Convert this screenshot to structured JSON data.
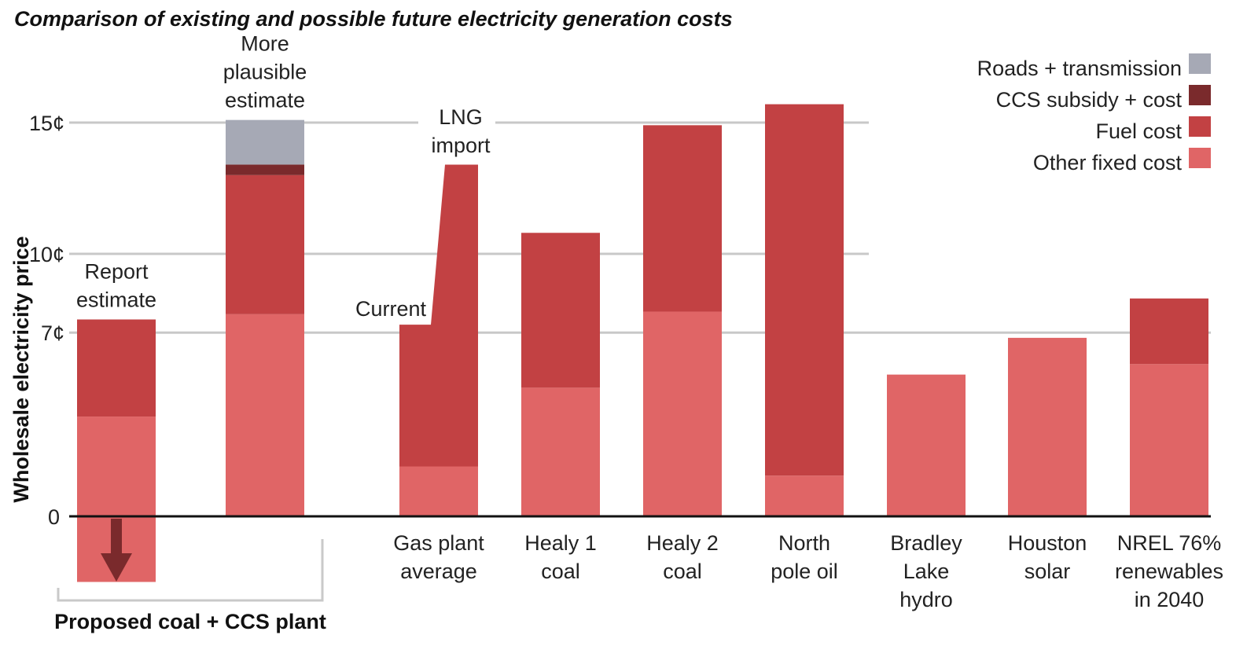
{
  "chart_data": {
    "type": "bar",
    "stacked": true,
    "title": "Comparison of existing and possible future electricity generation costs",
    "ylabel": "Wholesale electricity price",
    "ylim": [
      -2.5,
      16
    ],
    "yticks": [
      {
        "value": 0,
        "label": "0"
      },
      {
        "value": 7,
        "label": "7¢"
      },
      {
        "value": 10,
        "label": "10¢"
      },
      {
        "value": 15,
        "label": "15¢"
      }
    ],
    "gridlines": [
      7,
      10,
      15
    ],
    "legend_position": "top-right",
    "legend": [
      {
        "key": "roads",
        "label": "Roads + transmission",
        "color": "#a6a9b5"
      },
      {
        "key": "ccs",
        "label": "CCS subsidy + cost",
        "color": "#7a2a2c"
      },
      {
        "key": "fuel",
        "label": "Fuel cost",
        "color": "#c24143"
      },
      {
        "key": "fixed",
        "label": "Other fixed cost",
        "color": "#e06566"
      }
    ],
    "bars": [
      {
        "id": "report",
        "label_lines": [
          "Report",
          "estimate"
        ],
        "label_position": "above",
        "segments": {
          "fixed": 3.8,
          "fuel": 3.7,
          "ccs": 0,
          "roads": 0
        },
        "negative": -2.5
      },
      {
        "id": "plausible",
        "label_lines": [
          "More",
          "plausible",
          "estimate"
        ],
        "label_position": "above",
        "segments": {
          "fixed": 7.7,
          "fuel": 5.3,
          "ccs": 0.4,
          "roads": 1.7
        }
      },
      {
        "id": "gas",
        "label_lines": [
          "Gas plant",
          "average"
        ],
        "segments": {
          "fixed": 1.9,
          "fuel": 5.4,
          "ccs": 0,
          "roads": 0
        },
        "lng_import": 13.4,
        "annotations": [
          "Current",
          "LNG",
          "import"
        ]
      },
      {
        "id": "healy1",
        "label_lines": [
          "Healy 1",
          "coal"
        ],
        "segments": {
          "fixed": 4.9,
          "fuel": 5.9,
          "ccs": 0,
          "roads": 0
        }
      },
      {
        "id": "healy2",
        "label_lines": [
          "Healy 2",
          "coal"
        ],
        "segments": {
          "fixed": 7.8,
          "fuel": 7.1,
          "ccs": 0,
          "roads": 0
        }
      },
      {
        "id": "northpole",
        "label_lines": [
          "North",
          "pole oil"
        ],
        "segments": {
          "fixed": 1.55,
          "fuel": 14.15,
          "ccs": 0,
          "roads": 0
        }
      },
      {
        "id": "bradley",
        "label_lines": [
          "Bradley",
          "Lake",
          "hydro"
        ],
        "segments": {
          "fixed": 5.4,
          "fuel": 0,
          "ccs": 0,
          "roads": 0
        }
      },
      {
        "id": "houston",
        "label_lines": [
          "Houston",
          "solar"
        ],
        "segments": {
          "fixed": 6.8,
          "fuel": 0,
          "ccs": 0,
          "roads": 0
        }
      },
      {
        "id": "nrel",
        "label_lines": [
          "NREL 76%",
          "renewables",
          "in 2040"
        ],
        "segments": {
          "fixed": 5.8,
          "fuel": 2.5,
          "ccs": 0,
          "roads": 0
        }
      }
    ],
    "group_label": "Proposed coal + CCS plant"
  }
}
